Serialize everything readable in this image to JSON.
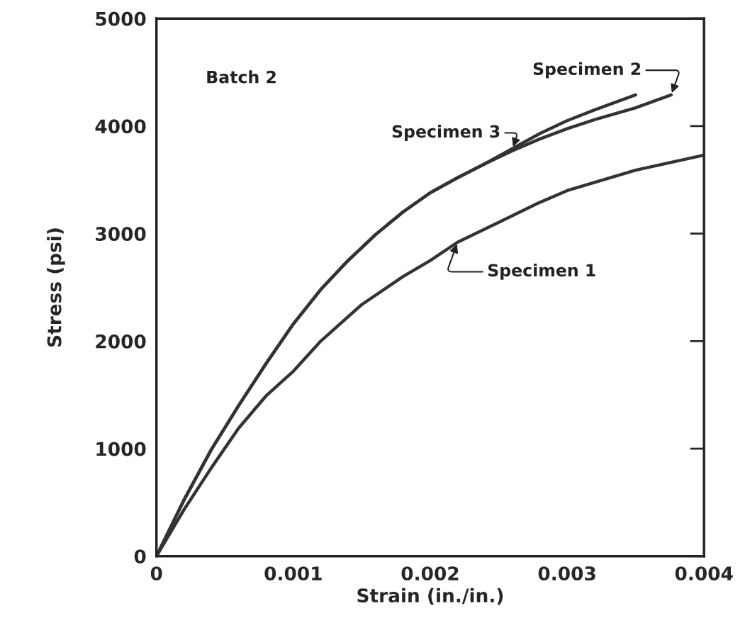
{
  "chart_data": {
    "type": "line",
    "xlabel": "Strain (in./in.)",
    "ylabel": "Stress (psi)",
    "annotations": [
      "Batch 2"
    ],
    "xlim": [
      0,
      0.004
    ],
    "ylim": [
      0,
      5000
    ],
    "xticks": [
      0,
      {
        "value": 0.001,
        "label": "0.001"
      },
      {
        "value": 0.002,
        "label": "0.002"
      },
      {
        "value": 0.003,
        "label": "0.003"
      },
      {
        "value": 0.004,
        "label": "0.004"
      }
    ],
    "yticks": [
      0,
      1000,
      2000,
      3000,
      4000,
      5000
    ],
    "grid": false,
    "legend": false,
    "marker": "none",
    "line_style": "solid",
    "series": [
      {
        "name": "Specimen 1",
        "color": "#333333",
        "x": [
          0,
          0.0002,
          0.0004,
          0.0006,
          0.0008,
          0.001,
          0.0012,
          0.0015,
          0.0018,
          0.002,
          0.0022,
          0.0025,
          0.0028,
          0.003,
          0.0035,
          0.004
        ],
        "values": [
          0,
          430,
          820,
          1190,
          1490,
          1720,
          2000,
          2340,
          2600,
          2750,
          2920,
          3105,
          3290,
          3400,
          3590,
          3730
        ]
      },
      {
        "name": "Specimen 2",
        "color": "#333333",
        "x": [
          0,
          0.0002,
          0.0004,
          0.0006,
          0.0008,
          0.001,
          0.0012,
          0.0014,
          0.0016,
          0.0018,
          0.002,
          0.0022,
          0.0024,
          0.0026,
          0.0028,
          0.003,
          0.0032,
          0.0035,
          0.00376
        ],
        "values": [
          0,
          520,
          990,
          1400,
          1790,
          2160,
          2480,
          2750,
          2990,
          3200,
          3380,
          3520,
          3650,
          3770,
          3880,
          3975,
          4060,
          4170,
          4290
        ]
      },
      {
        "name": "Specimen 3",
        "color": "#333333",
        "x": [
          0,
          0.0002,
          0.0004,
          0.0006,
          0.0008,
          0.001,
          0.0012,
          0.0014,
          0.0016,
          0.0018,
          0.002,
          0.0022,
          0.0024,
          0.0026,
          0.0028,
          0.003,
          0.0032,
          0.0035
        ],
        "values": [
          0,
          520,
          990,
          1400,
          1790,
          2160,
          2480,
          2750,
          2990,
          3200,
          3380,
          3520,
          3650,
          3790,
          3930,
          4050,
          4150,
          4290
        ]
      }
    ]
  }
}
